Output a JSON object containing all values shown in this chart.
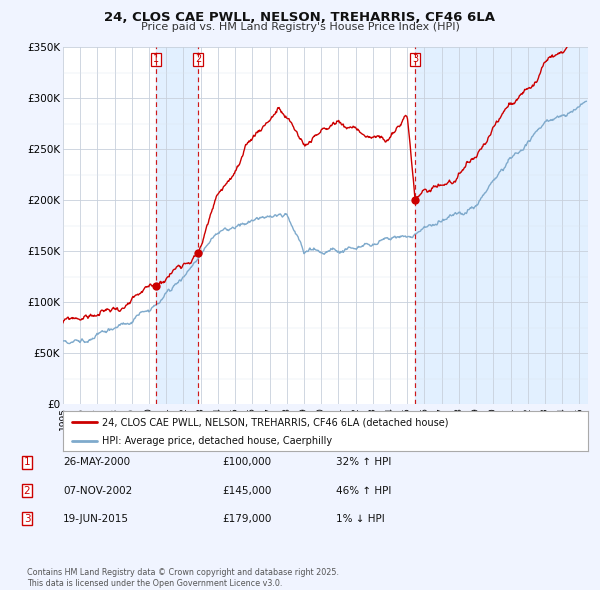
{
  "title": "24, CLOS CAE PWLL, NELSON, TREHARRIS, CF46 6LA",
  "subtitle": "Price paid vs. HM Land Registry's House Price Index (HPI)",
  "legend_line1": "24, CLOS CAE PWLL, NELSON, TREHARRIS, CF46 6LA (detached house)",
  "legend_line2": "HPI: Average price, detached house, Caerphilly",
  "xmin": 1995.0,
  "xmax": 2025.5,
  "ymin": 0,
  "ymax": 350000,
  "yticks": [
    0,
    50000,
    100000,
    150000,
    200000,
    250000,
    300000,
    350000
  ],
  "ytick_labels": [
    "£0",
    "£50K",
    "£100K",
    "£150K",
    "£200K",
    "£250K",
    "£300K",
    "£350K"
  ],
  "sale_color": "#cc0000",
  "hpi_color": "#7faacc",
  "transaction_color": "#cc0000",
  "transactions": [
    {
      "num": 1,
      "date_str": "26-MAY-2000",
      "price": 100000,
      "hpi_pct": "32% ↑ HPI",
      "x": 2000.4
    },
    {
      "num": 2,
      "date_str": "07-NOV-2002",
      "price": 145000,
      "hpi_pct": "46% ↑ HPI",
      "x": 2002.85
    },
    {
      "num": 3,
      "date_str": "19-JUN-2015",
      "price": 179000,
      "hpi_pct": "1% ↓ HPI",
      "x": 2015.46
    }
  ],
  "footnote": "Contains HM Land Registry data © Crown copyright and database right 2025.\nThis data is licensed under the Open Government Licence v3.0.",
  "bg_color": "#f0f4ff",
  "plot_bg": "#ffffff",
  "highlight_bg": "#ddeeff"
}
